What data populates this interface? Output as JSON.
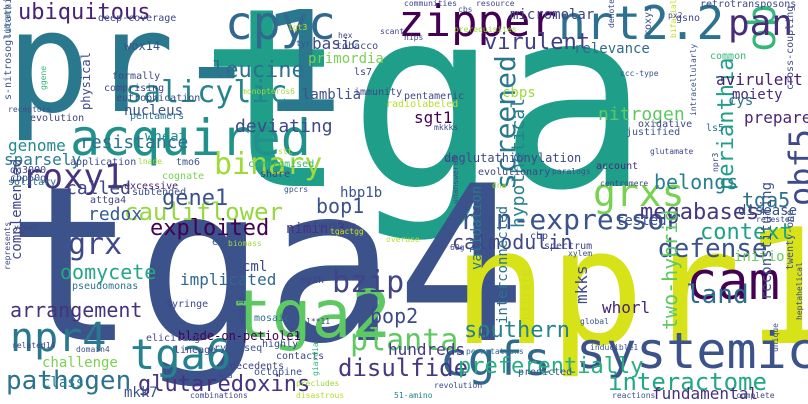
{
  "words": [
    {
      "text": "tga",
      "color": "#1f9e89"
    },
    {
      "text": "pr-1",
      "color": "#2a788e"
    },
    {
      "text": "tga4",
      "color": "#3b528b"
    },
    {
      "text": "npr1",
      "color": "#d8e219"
    },
    {
      "text": "acquired",
      "color": "#21918c"
    },
    {
      "text": "systemic",
      "color": "#3b528b"
    },
    {
      "text": "tga2",
      "color": "#5ec962"
    },
    {
      "text": "zipper",
      "color": "#440154"
    },
    {
      "text": "nrt2.2",
      "color": "#2c728e"
    },
    {
      "text": "obf5",
      "color": "#35b779"
    },
    {
      "text": "obf5",
      "color": "#3e4989"
    },
    {
      "text": "cpyc",
      "color": "#31688e"
    },
    {
      "text": "pan",
      "color": "#472c7a"
    },
    {
      "text": "cam",
      "color": "#440154"
    },
    {
      "text": "cgfs",
      "color": "#31688e"
    },
    {
      "text": "tga6",
      "color": "#26828e"
    },
    {
      "text": "grxs",
      "color": "#7ad151"
    },
    {
      "text": "npr4",
      "color": "#2a788e"
    },
    {
      "text": "salicylic",
      "color": "#25858e"
    },
    {
      "text": "binary",
      "color": "#a0da39"
    },
    {
      "text": "leucine",
      "color": "#2d708e"
    },
    {
      "text": "perianthia",
      "color": "#1f9e89"
    },
    {
      "text": "screened",
      "color": "#2a788e"
    },
    {
      "text": "non-expressor",
      "color": "#3b528b"
    },
    {
      "text": "roxy1",
      "color": "#46337e"
    },
    {
      "text": "grx",
      "color": "#3e4989"
    },
    {
      "text": "pathogen",
      "color": "#2c728e"
    },
    {
      "text": "interactome",
      "color": "#22a884"
    },
    {
      "text": "bzip",
      "color": "#414487"
    },
    {
      "text": "defense",
      "color": "#3b528b"
    },
    {
      "text": "planta",
      "color": "#5ec962"
    },
    {
      "text": "disulfide",
      "color": "#443983"
    },
    {
      "text": "glutaredoxins",
      "color": "#46327e"
    },
    {
      "text": "preferentially",
      "color": "#29af7f"
    },
    {
      "text": "land",
      "color": "#2e6e8e"
    },
    {
      "text": "megabases",
      "color": "#453781"
    },
    {
      "text": "context",
      "color": "#1fa187"
    },
    {
      "text": "two-hybrid",
      "color": "#5ec962"
    },
    {
      "text": "hypothetical",
      "color": "#27808e"
    },
    {
      "text": "ubiquitous",
      "color": "#482173"
    },
    {
      "text": "cauliflower",
      "color": "#95d840"
    },
    {
      "text": "exploited",
      "color": "#440154"
    },
    {
      "text": "gene1",
      "color": "#3b528b"
    },
    {
      "text": "bop2",
      "color": "#3e4989"
    },
    {
      "text": "bop1",
      "color": "#3b528b"
    },
    {
      "text": "oomycete",
      "color": "#22a884"
    },
    {
      "text": "arrangement",
      "color": "#46327e"
    },
    {
      "text": "southern",
      "color": "#26828e"
    },
    {
      "text": "belongs",
      "color": "#27808e"
    },
    {
      "text": "tga5",
      "color": "#2c728e"
    },
    {
      "text": "calmodulin",
      "color": "#3f4788"
    },
    {
      "text": "virulent",
      "color": "#433e85"
    },
    {
      "text": "basic",
      "color": "#3e4a89"
    },
    {
      "text": "primordia",
      "color": "#7ad151"
    },
    {
      "text": "nitrogen",
      "color": "#5ec962"
    },
    {
      "text": "resistance",
      "color": "#2c728e"
    },
    {
      "text": "redox",
      "color": "#365c8d"
    },
    {
      "text": "genome",
      "color": "#238a8d"
    },
    {
      "text": "sparsely",
      "color": "#287c8e"
    },
    {
      "text": "wheat",
      "color": "#218f8d"
    },
    {
      "text": "nucleus",
      "color": "#3b528b"
    },
    {
      "text": "deviating",
      "color": "#3e4a89"
    },
    {
      "text": "called",
      "color": "#3f4788"
    },
    {
      "text": "mkks",
      "color": "#3e4989"
    },
    {
      "text": "hundreds",
      "color": "#453882"
    },
    {
      "text": "fundamental",
      "color": "#46307e"
    },
    {
      "text": "whorl",
      "color": "#482374"
    },
    {
      "text": "initio",
      "color": "#6ccd5a"
    },
    {
      "text": "disease",
      "color": "#3b528b"
    },
    {
      "text": "reconstituting",
      "color": "#3c508b"
    },
    {
      "text": "prepared",
      "color": "#482576"
    },
    {
      "text": "avirulent",
      "color": "#482173"
    },
    {
      "text": "moiety",
      "color": "#472d7b"
    },
    {
      "text": "micromolar",
      "color": "#414487"
    },
    {
      "text": "relevance",
      "color": "#306a8e"
    },
    {
      "text": "cys",
      "color": "#2c738e"
    },
    {
      "text": "implicated",
      "color": "#31678e"
    },
    {
      "text": "cml",
      "color": "#3e4a89"
    },
    {
      "text": "complemented",
      "color": "#404588"
    },
    {
      "text": "sgt1",
      "color": "#440154"
    },
    {
      "text": "hbp1b",
      "color": "#3b528b"
    },
    {
      "text": "blade-on-petiole1",
      "color": "#440154"
    },
    {
      "text": "physical",
      "color": "#3e4a89"
    },
    {
      "text": "lamblia",
      "color": "#3b528b"
    },
    {
      "text": "validation",
      "color": "#2a788e"
    },
    {
      "text": "interconnected",
      "color": "#2c728e"
    },
    {
      "text": "nimin-3",
      "color": "#46327e"
    },
    {
      "text": "tested",
      "color": "#3b528b"
    },
    {
      "text": "challenge",
      "color": "#7ad151"
    },
    {
      "text": "class",
      "color": "#26828e"
    },
    {
      "text": "mkk7",
      "color": "#3b528b"
    },
    {
      "text": "cbps",
      "color": "#9fda3a"
    },
    {
      "text": "wox14",
      "color": "#3b528b"
    },
    {
      "text": "ls5",
      "color": "#2c728e"
    },
    {
      "text": "account",
      "color": "#472d7b"
    },
    {
      "text": "deglutathionylation",
      "color": "#3e4989"
    },
    {
      "text": "eutrophication",
      "color": "#3e4a89"
    },
    {
      "text": "tobacco",
      "color": "#3e4a89"
    },
    {
      "text": "evolutionary",
      "color": "#3f4788"
    },
    {
      "text": "nitrate",
      "color": "#c8e020"
    },
    {
      "text": "oxidative",
      "color": "#404688"
    },
    {
      "text": "gsno",
      "color": "#3e4989"
    },
    {
      "text": "common",
      "color": "#35b779"
    },
    {
      "text": "spectrum",
      "color": "#3f4788"
    },
    {
      "text": "pseudomonas",
      "color": "#2c728e"
    },
    {
      "text": "syringe",
      "color": "#3f4788"
    },
    {
      "text": "lineage",
      "color": "#414487"
    },
    {
      "text": "mosaic",
      "color": "#2d708e"
    },
    {
      "text": "octopine",
      "color": "#3b528b"
    },
    {
      "text": "decedents",
      "color": "#414487"
    },
    {
      "text": "combinations",
      "color": "#3f4788"
    },
    {
      "text": "51-amino",
      "color": "#26828e"
    },
    {
      "text": "reactions",
      "color": "#3b528b"
    },
    {
      "text": "complete",
      "color": "#3f4788"
    },
    {
      "text": "predicted",
      "color": "#3b528b"
    },
    {
      "text": "revolution",
      "color": "#3e4989"
    },
    {
      "text": "permutations",
      "color": "#2c728e"
    },
    {
      "text": "highly",
      "color": "#3e4a89"
    },
    {
      "text": "contacts",
      "color": "#3f4788"
    },
    {
      "text": "eliciting",
      "color": "#3e4a89"
    },
    {
      "text": "cry2h-seq",
      "color": "#3b528b"
    },
    {
      "text": "ey1h",
      "color": "#414487"
    },
    {
      "text": "justified",
      "color": "#3b528b"
    },
    {
      "text": "share",
      "color": "#414487"
    },
    {
      "text": "excessive",
      "color": "#481f70"
    },
    {
      "text": "subtended",
      "color": "#3b528b"
    },
    {
      "text": "application",
      "color": "#3e4a89"
    },
    {
      "text": "cognate",
      "color": "#7ad151"
    },
    {
      "text": "tmo6",
      "color": "#3b528b"
    },
    {
      "text": "cbp60g",
      "color": "#3b528b"
    },
    {
      "text": "dc3000",
      "color": "#3f4788"
    },
    {
      "text": "solitary",
      "color": "#2c728e"
    },
    {
      "text": "attga4",
      "color": "#3f4788"
    },
    {
      "text": "library",
      "color": "#2c728e"
    },
    {
      "text": "deep-coverage",
      "color": "#3e4989"
    },
    {
      "text": "communities",
      "color": "#3f4788"
    },
    {
      "text": "resource",
      "color": "#3f4788"
    },
    {
      "text": "retrotransposons",
      "color": "#3e4989"
    },
    {
      "text": "cross-coupling",
      "color": "#3f4788"
    },
    {
      "text": "s-nitrosoglutathione",
      "color": "#3b528b"
    },
    {
      "text": "formally",
      "color": "#3e4a89"
    },
    {
      "text": "comprising",
      "color": "#3f4788"
    },
    {
      "text": "evolution",
      "color": "#414487"
    },
    {
      "text": "receptors",
      "color": "#3b528b"
    },
    {
      "text": "pentamers",
      "color": "#2c728e"
    },
    {
      "text": "immunity",
      "color": "#3f4788"
    },
    {
      "text": "ls7",
      "color": "#414487"
    },
    {
      "text": "monopteros6",
      "color": "#9fda3a"
    },
    {
      "text": "nips",
      "color": "#3e4a89"
    },
    {
      "text": "hex",
      "color": "#3f4788"
    },
    {
      "text": "tyr",
      "color": "#3b528b"
    },
    {
      "text": "scant",
      "color": "#3f4788"
    },
    {
      "text": "pentameric",
      "color": "#3e4989"
    },
    {
      "text": "radiolabeled",
      "color": "#b5de2b"
    },
    {
      "text": "mkkks",
      "color": "#3f4788"
    },
    {
      "text": "compromised",
      "color": "#35b779"
    },
    {
      "text": "dna",
      "color": "#9fda3a"
    },
    {
      "text": "unanswered",
      "color": "#3b528b"
    },
    {
      "text": "gpcrs",
      "color": "#3b528b"
    },
    {
      "text": "erysiphe",
      "color": "#414487"
    },
    {
      "text": "biomass",
      "color": "#9fda3a"
    },
    {
      "text": "60g",
      "color": "#414487"
    },
    {
      "text": "overuse",
      "color": "#b5de2b"
    },
    {
      "text": "xylem",
      "color": "#3b528b"
    },
    {
      "text": "retested",
      "color": "#3f4788"
    },
    {
      "text": "twenty-one",
      "color": "#3b528b"
    },
    {
      "text": "heptahelical",
      "color": "#3e4a89"
    },
    {
      "text": "unique",
      "color": "#3b528b"
    },
    {
      "text": "inducible1",
      "color": "#3b528b"
    },
    {
      "text": "global",
      "color": "#3b528b"
    },
    {
      "text": "nir",
      "color": "#414487"
    },
    {
      "text": "giardia",
      "color": "#35b779"
    },
    {
      "text": "moa",
      "color": "#3e4a89"
    },
    {
      "text": "precludes",
      "color": "#9fda3a"
    },
    {
      "text": "disastrous",
      "color": "#b5de2b"
    },
    {
      "text": "1**11",
      "color": "#3f4788"
    },
    {
      "text": "atmp1b",
      "color": "#3e4a89"
    },
    {
      "text": "domain4",
      "color": "#3b528b"
    },
    {
      "text": "related14",
      "color": "#3f4788"
    },
    {
      "text": "represents",
      "color": "#3f4788"
    },
    {
      "text": "yeast",
      "color": "#3f4788"
    },
    {
      "text": "en",
      "color": "#3b528b"
    },
    {
      "text": "tgactgg",
      "color": "#c8e020"
    },
    {
      "text": "cbp",
      "color": "#3f4788"
    },
    {
      "text": "centromere",
      "color": "#3f4788"
    },
    {
      "text": "paralogs",
      "color": "#3b528b"
    },
    {
      "text": "npr3",
      "color": "#3f4788"
    },
    {
      "text": "roxys",
      "color": "#3b528b"
    },
    {
      "text": "denoted",
      "color": "#3f4788"
    },
    {
      "text": "bifacial",
      "color": "#c8e020"
    },
    {
      "text": "px2",
      "color": "#3f4788"
    },
    {
      "text": "intracellularly",
      "color": "#3b528b"
    },
    {
      "text": "ccc-type",
      "color": "#3b528b"
    },
    {
      "text": "glutamate",
      "color": "#3e4a89"
    },
    {
      "text": "ggene",
      "color": "#35b779"
    },
    {
      "text": "ox",
      "color": "#3e4a89"
    },
    {
      "text": "cbs",
      "color": "#3b528b"
    },
    {
      "text": "lnade",
      "color": "#9fda3a"
    },
    {
      "text": "stt",
      "color": "#b5de2b"
    },
    {
      "text": "lgt3",
      "color": "#c8e020"
    },
    {
      "text": "prerequisites",
      "color": "#9fda3a"
    }
  ]
}
